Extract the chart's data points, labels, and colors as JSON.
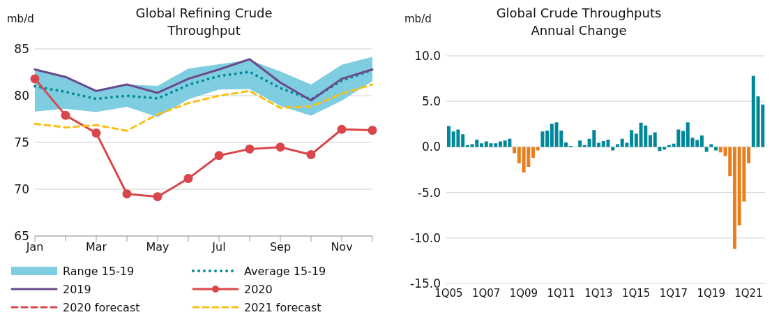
{
  "chart_data": [
    {
      "type": "line",
      "title": "Global Refining Crude Throughput",
      "ylabel": "mb/d",
      "categories": [
        "Jan",
        null,
        "Mar",
        null,
        "May",
        null,
        "Jul",
        null,
        "Sep",
        null,
        "Nov",
        null
      ],
      "annotations": [
        "Range 15-19"
      ],
      "ylim": [
        65,
        85
      ],
      "yticks": [
        65,
        70,
        75,
        80,
        85
      ],
      "grid": "y",
      "legend": "bottom",
      "series": [
        {
          "name": "Average 15-19",
          "type": "line",
          "color": "#00889a",
          "line_style": "dotted",
          "marker": "none",
          "values": [
            81.0,
            80.4,
            79.65,
            80.0,
            79.7,
            81.15,
            82.1,
            82.55,
            80.8,
            79.6,
            81.6,
            82.75
          ],
          "lower": [
            78.3,
            78.6,
            78.25,
            78.8,
            77.7,
            79.6,
            80.65,
            80.7,
            78.9,
            77.85,
            79.45,
            81.55
          ],
          "upper": [
            82.8,
            82.0,
            80.5,
            81.2,
            81.05,
            82.9,
            83.35,
            83.8,
            82.6,
            81.2,
            83.3,
            84.15
          ]
        },
        {
          "name": "2019",
          "type": "line",
          "color": "#6a4a8c",
          "line_style": "solid",
          "marker": "none",
          "values": [
            82.8,
            82.0,
            80.5,
            81.2,
            80.3,
            81.8,
            82.8,
            83.9,
            81.4,
            79.5,
            81.8,
            82.8
          ]
        },
        {
          "name": "2020",
          "type": "line",
          "color": "#d9464b",
          "line_style": "solid",
          "marker": "circle",
          "values": [
            81.8,
            77.9,
            76.0,
            69.5,
            69.2,
            71.15,
            73.6,
            74.3,
            74.5,
            73.7,
            76.4,
            76.3
          ]
        },
        {
          "name": "2020 forecast",
          "type": "line",
          "color": "#d9464b",
          "line_style": "dashed",
          "marker": "none",
          "values": [
            null,
            null,
            null,
            null,
            null,
            null,
            null,
            null,
            null,
            null,
            null,
            null
          ]
        },
        {
          "name": "2021 forecast",
          "type": "line",
          "color": "#fbbf13",
          "line_style": "dashed",
          "marker": "none",
          "values": [
            77.0,
            76.6,
            76.85,
            76.25,
            78.0,
            79.2,
            80.0,
            80.5,
            78.7,
            78.85,
            80.2,
            81.2
          ]
        }
      ]
    },
    {
      "type": "bar",
      "title": "Global Crude Throughputs Annual Change",
      "ylabel": "mb/d",
      "categories": [
        "1Q05",
        null,
        null,
        null,
        null,
        null,
        null,
        null,
        "1Q07",
        null,
        null,
        null,
        null,
        null,
        null,
        null,
        "1Q09",
        null,
        null,
        null,
        null,
        null,
        null,
        null,
        "1Q11",
        null,
        null,
        null,
        null,
        null,
        null,
        null,
        "1Q13",
        null,
        null,
        null,
        null,
        null,
        null,
        null,
        "1Q15",
        null,
        null,
        null,
        null,
        null,
        null,
        null,
        "1Q17",
        null,
        null,
        null,
        null,
        null,
        null,
        null,
        "1Q19",
        null,
        null,
        null,
        null,
        null,
        null,
        null,
        "1Q21",
        null,
        null,
        null
      ],
      "values": [
        2.3,
        1.7,
        1.9,
        1.4,
        0.2,
        0.3,
        0.8,
        0.4,
        0.6,
        0.4,
        0.4,
        0.6,
        0.7,
        0.9,
        -0.7,
        -1.8,
        -2.8,
        -2.2,
        -1.2,
        -0.4,
        1.7,
        1.8,
        2.55,
        2.7,
        1.8,
        0.5,
        0.1,
        0.0,
        0.7,
        0.2,
        0.9,
        1.85,
        0.45,
        0.65,
        0.8,
        -0.4,
        0.3,
        0.9,
        0.45,
        1.85,
        1.45,
        2.65,
        2.35,
        1.3,
        1.6,
        -0.45,
        -0.3,
        0.2,
        0.35,
        1.9,
        1.75,
        2.7,
        1.0,
        0.75,
        1.25,
        -0.55,
        0.3,
        -0.4,
        -0.6,
        -1.0,
        -3.2,
        -11.2,
        -8.6,
        -6.0,
        -1.8,
        7.8,
        5.55,
        4.65
      ],
      "colors": [
        "#00889a",
        "#00889a",
        "#00889a",
        "#00889a",
        "#00889a",
        "#00889a",
        "#00889a",
        "#00889a",
        "#00889a",
        "#00889a",
        "#00889a",
        "#00889a",
        "#00889a",
        "#00889a",
        "#e97e1d",
        "#e97e1d",
        "#e97e1d",
        "#e97e1d",
        "#e97e1d",
        "#e97e1d",
        "#00889a",
        "#00889a",
        "#00889a",
        "#00889a",
        "#00889a",
        "#00889a",
        "#00889a",
        "#00889a",
        "#00889a",
        "#00889a",
        "#00889a",
        "#00889a",
        "#00889a",
        "#00889a",
        "#00889a",
        "#00889a",
        "#00889a",
        "#00889a",
        "#00889a",
        "#00889a",
        "#00889a",
        "#00889a",
        "#00889a",
        "#00889a",
        "#00889a",
        "#00889a",
        "#00889a",
        "#00889a",
        "#00889a",
        "#00889a",
        "#00889a",
        "#00889a",
        "#00889a",
        "#00889a",
        "#00889a",
        "#00889a",
        "#00889a",
        "#00889a",
        "#e97e1d",
        "#e97e1d",
        "#e97e1d",
        "#e97e1d",
        "#e97e1d",
        "#e97e1d",
        "#e97e1d",
        "#00889a",
        "#00889a",
        "#00889a"
      ],
      "ylim": [
        -15,
        10
      ],
      "yticks": [
        {
          "value": -15,
          "label": "-15.0"
        },
        {
          "value": -10,
          "label": "-10.0"
        },
        {
          "value": -5,
          "label": "-5.0"
        },
        {
          "value": 0,
          "label": "0.0"
        },
        {
          "value": 5,
          "label": "5.0"
        },
        {
          "value": 10,
          "label": "10.0"
        }
      ],
      "grid": "y"
    }
  ]
}
